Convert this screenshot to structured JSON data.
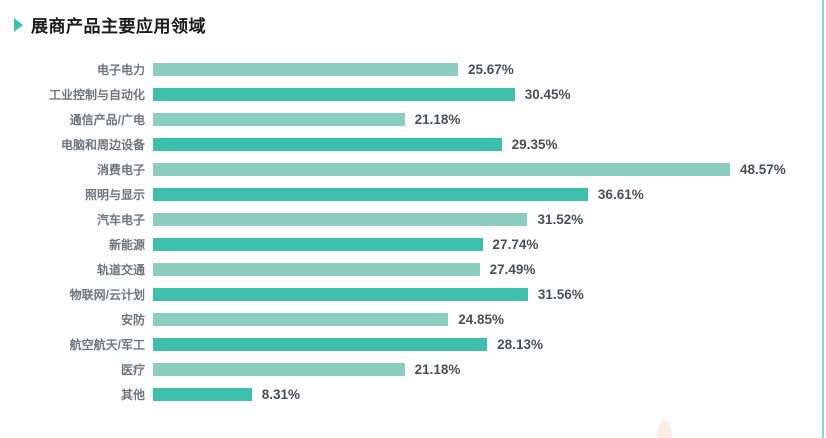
{
  "page": {
    "title": "展商产品主要应用领域"
  },
  "chart_data": {
    "type": "bar",
    "orientation": "horizontal",
    "title": "展商产品主要应用领域",
    "categories": [
      "电子电力",
      "工业控制与自动化",
      "通信产品/广电",
      "电脑和周边设备",
      "消费电子",
      "照明与显示",
      "汽车电子",
      "新能源",
      "轨道交通",
      "物联网/云计划",
      "安防",
      "航空航天/军工",
      "医疗",
      "其他"
    ],
    "values": [
      25.67,
      30.45,
      21.18,
      29.35,
      48.57,
      36.61,
      31.52,
      27.74,
      27.49,
      31.56,
      24.85,
      28.13,
      21.18,
      8.31
    ],
    "value_labels": [
      "25.67%",
      "30.45%",
      "21.18%",
      "29.35%",
      "48.57%",
      "36.61%",
      "31.52%",
      "27.74%",
      "27.49%",
      "31.56%",
      "24.85%",
      "28.13%",
      "21.18%",
      "8.31%"
    ],
    "value_suffix": "%",
    "xlim": [
      0,
      50
    ],
    "grid": false,
    "legend": null,
    "bar_color_pattern": "alternating",
    "colors": {
      "bar_light": "#8bcec1",
      "bar_dark": "#3ebfac",
      "title_text": "#1b1b1b",
      "category_text": "#6e7780",
      "value_text": "#475059",
      "title_marker": "#3ebfac",
      "page_edge_line": "#7edbd2",
      "decor_shape": "#fcece2"
    }
  }
}
